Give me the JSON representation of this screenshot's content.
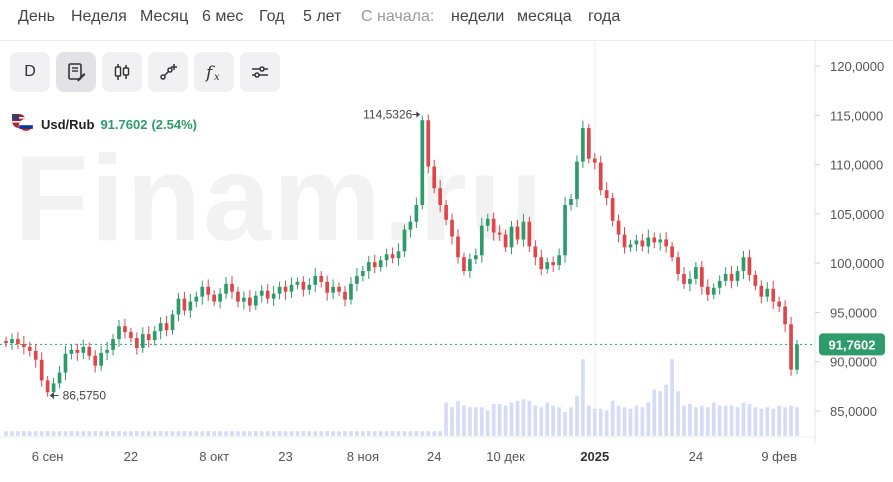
{
  "period_bar": {
    "items": [
      {
        "label": "День"
      },
      {
        "label": "Неделя"
      },
      {
        "label": "Месяц"
      },
      {
        "label": "6 мес"
      },
      {
        "label": "Год"
      },
      {
        "label": "5 лет"
      }
    ],
    "since_label": "С начала:",
    "since_items": [
      {
        "label": "недели"
      },
      {
        "label": "месяца"
      },
      {
        "label": "года"
      }
    ]
  },
  "toolbar": {
    "interval_label": "D",
    "tools": [
      "d-icon",
      "document-pen-icon",
      "candles-icon",
      "line-draw-icon",
      "function-icon",
      "settings-sliders-icon"
    ]
  },
  "instrument": {
    "symbol": "Usd/Rub",
    "last_value": "91.7602",
    "change": "(2.54%)",
    "flag_icons": [
      "us-flag-icon",
      "ru-flag-icon"
    ]
  },
  "watermark": "Finam.ru",
  "chart_data": {
    "type": "candlestick",
    "yaxis_ticks": [
      "120,0000",
      "115,0000",
      "110,0000",
      "105,0000",
      "100,0000",
      "95,0000",
      "90,0000",
      "85,0000"
    ],
    "ylim": [
      83.5,
      121.5
    ],
    "xaxis_ticks": [
      "6 сен",
      "22",
      "8 окт",
      "23",
      "8 ноя",
      "24",
      "10 дек",
      "2025",
      "24",
      "9 фев"
    ],
    "last_price_label": "91,7602",
    "last_price": 91.7602,
    "max_annotation": "114,5326",
    "max_value": 114.5326,
    "min_annotation": "86,5750",
    "min_value": 86.575,
    "colors": {
      "up": "#2e9b6a",
      "down": "#e0454a",
      "volume": "#d6dcf7",
      "price_line": "#2e9b6a"
    },
    "candles": [
      [
        92.1,
        91.9
      ],
      [
        91.9,
        92.3
      ],
      [
        92.3,
        91.8
      ],
      [
        91.8,
        91.5
      ],
      [
        91.5,
        91.1
      ],
      [
        91.1,
        90.2
      ],
      [
        90.2,
        88.1
      ],
      [
        88.1,
        86.9
      ],
      [
        86.9,
        87.8
      ],
      [
        87.8,
        88.9
      ],
      [
        88.9,
        90.8
      ],
      [
        90.8,
        91.2
      ],
      [
        91.2,
        90.9
      ],
      [
        90.9,
        91.5
      ],
      [
        91.5,
        90.6
      ],
      [
        90.6,
        89.6
      ],
      [
        89.6,
        90.9
      ],
      [
        90.9,
        91.2
      ],
      [
        91.2,
        92.3
      ],
      [
        92.3,
        93.6
      ],
      [
        93.6,
        93.0
      ],
      [
        93.0,
        92.4
      ],
      [
        92.4,
        91.4
      ],
      [
        91.4,
        92.8
      ],
      [
        92.8,
        92.2
      ],
      [
        92.2,
        93.1
      ],
      [
        93.1,
        93.9
      ],
      [
        93.9,
        93.2
      ],
      [
        93.2,
        94.8
      ],
      [
        94.8,
        96.4
      ],
      [
        96.4,
        95.2
      ],
      [
        95.2,
        96.1
      ],
      [
        96.1,
        96.6
      ],
      [
        96.6,
        97.6
      ],
      [
        97.6,
        96.8
      ],
      [
        96.8,
        96.1
      ],
      [
        96.1,
        96.9
      ],
      [
        96.9,
        97.9
      ],
      [
        97.9,
        97.1
      ],
      [
        97.1,
        96.1
      ],
      [
        96.1,
        96.5
      ],
      [
        96.5,
        95.7
      ],
      [
        95.7,
        96.7
      ],
      [
        96.7,
        97.2
      ],
      [
        97.2,
        96.4
      ],
      [
        96.4,
        96.9
      ],
      [
        96.9,
        97.6
      ],
      [
        97.6,
        97.1
      ],
      [
        97.1,
        97.8
      ],
      [
        97.8,
        98.1
      ],
      [
        98.1,
        97.3
      ],
      [
        97.3,
        97.8
      ],
      [
        97.8,
        98.7
      ],
      [
        98.7,
        98.1
      ],
      [
        98.1,
        97.0
      ],
      [
        97.0,
        97.6
      ],
      [
        97.6,
        97.1
      ],
      [
        97.1,
        96.3
      ],
      [
        96.3,
        97.9
      ],
      [
        97.9,
        98.7
      ],
      [
        98.7,
        99.2
      ],
      [
        99.2,
        100.1
      ],
      [
        100.1,
        99.6
      ],
      [
        99.6,
        100.3
      ],
      [
        100.3,
        100.9
      ],
      [
        100.9,
        100.5
      ],
      [
        100.5,
        101.2
      ],
      [
        101.2,
        103.4
      ],
      [
        103.4,
        104.2
      ],
      [
        104.2,
        105.9
      ],
      [
        105.9,
        114.5
      ],
      [
        114.5,
        109.8
      ],
      [
        109.8,
        107.6
      ],
      [
        107.6,
        105.9
      ],
      [
        105.9,
        104.4
      ],
      [
        104.4,
        102.7
      ],
      [
        102.7,
        100.6
      ],
      [
        100.6,
        99.2
      ],
      [
        99.2,
        100.4
      ],
      [
        100.4,
        100.8
      ],
      [
        100.8,
        103.8
      ],
      [
        103.8,
        104.5
      ],
      [
        104.5,
        103.1
      ],
      [
        103.1,
        102.9
      ],
      [
        102.9,
        101.6
      ],
      [
        101.6,
        103.7
      ],
      [
        103.7,
        102.4
      ],
      [
        102.4,
        104.2
      ],
      [
        104.2,
        101.7
      ],
      [
        101.7,
        100.6
      ],
      [
        100.6,
        99.4
      ],
      [
        99.4,
        100.1
      ],
      [
        100.1,
        99.8
      ],
      [
        99.8,
        100.8
      ],
      [
        100.8,
        105.9
      ],
      [
        105.9,
        106.5
      ],
      [
        106.5,
        110.3
      ],
      [
        110.3,
        113.7
      ],
      [
        113.7,
        110.6
      ],
      [
        110.6,
        110.2
      ],
      [
        110.2,
        107.4
      ],
      [
        107.4,
        106.6
      ],
      [
        106.6,
        104.3
      ],
      [
        104.3,
        102.9
      ],
      [
        102.9,
        101.6
      ],
      [
        101.6,
        101.9
      ],
      [
        101.9,
        102.3
      ],
      [
        102.3,
        101.7
      ],
      [
        101.7,
        102.6
      ],
      [
        102.6,
        102.1
      ],
      [
        102.1,
        102.4
      ],
      [
        102.4,
        101.7
      ],
      [
        101.7,
        100.6
      ],
      [
        100.6,
        98.9
      ],
      [
        98.9,
        97.9
      ],
      [
        97.9,
        98.4
      ],
      [
        98.4,
        99.6
      ],
      [
        99.6,
        97.6
      ],
      [
        97.6,
        96.8
      ],
      [
        96.8,
        97.5
      ],
      [
        97.5,
        98.2
      ],
      [
        98.2,
        98.9
      ],
      [
        98.9,
        98.2
      ],
      [
        98.2,
        99.2
      ],
      [
        99.2,
        100.6
      ],
      [
        100.6,
        98.8
      ],
      [
        98.8,
        97.7
      ],
      [
        97.7,
        96.6
      ],
      [
        96.6,
        97.4
      ],
      [
        97.4,
        96.1
      ],
      [
        96.1,
        95.6
      ],
      [
        95.6,
        93.8
      ],
      [
        93.8,
        89.2
      ],
      [
        89.2,
        91.7602
      ]
    ],
    "volumes": [
      0.06,
      0.06,
      0.06,
      0.06,
      0.06,
      0.06,
      0.06,
      0.06,
      0.06,
      0.06,
      0.06,
      0.06,
      0.06,
      0.06,
      0.06,
      0.06,
      0.06,
      0.06,
      0.06,
      0.06,
      0.06,
      0.06,
      0.06,
      0.06,
      0.06,
      0.06,
      0.06,
      0.06,
      0.06,
      0.06,
      0.06,
      0.06,
      0.06,
      0.06,
      0.06,
      0.06,
      0.06,
      0.06,
      0.06,
      0.06,
      0.06,
      0.06,
      0.06,
      0.06,
      0.06,
      0.06,
      0.06,
      0.06,
      0.06,
      0.06,
      0.06,
      0.06,
      0.06,
      0.06,
      0.06,
      0.06,
      0.06,
      0.06,
      0.06,
      0.06,
      0.06,
      0.06,
      0.06,
      0.06,
      0.06,
      0.06,
      0.06,
      0.06,
      0.06,
      0.06,
      0.06,
      0.06,
      0.06,
      0.06,
      0.42,
      0.36,
      0.44,
      0.38,
      0.36,
      0.36,
      0.36,
      0.32,
      0.4,
      0.4,
      0.38,
      0.42,
      0.44,
      0.46,
      0.44,
      0.38,
      0.36,
      0.42,
      0.38,
      0.36,
      0.3,
      0.36,
      0.5,
      0.96,
      0.38,
      0.34,
      0.34,
      0.32,
      0.44,
      0.38,
      0.36,
      0.34,
      0.38,
      0.36,
      0.42,
      0.58,
      0.56,
      0.64,
      0.96,
      0.56,
      0.38,
      0.4,
      0.36,
      0.38,
      0.36,
      0.42,
      0.38,
      0.38,
      0.38,
      0.36,
      0.42,
      0.4,
      0.36,
      0.34,
      0.36,
      0.34,
      0.38,
      0.36,
      0.38,
      0.36
    ]
  }
}
